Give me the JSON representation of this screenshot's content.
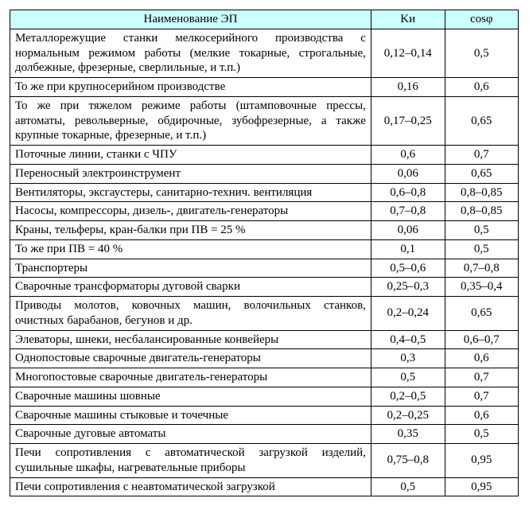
{
  "table": {
    "headers": {
      "name": "Наименование ЭП",
      "ki": "Kи",
      "cosphi": "cosφ"
    },
    "rows": [
      {
        "name": "Металлорежущие станки мелкосерийного производства с нормальным режимом работы (мелкие токарные, строгальные, долбежные, фрезерные, сверлильные, и т.п.)",
        "ki": "0,12–0,14",
        "cosphi": "0,5"
      },
      {
        "name": "То же при крупносерийном производстве",
        "ki": "0,16",
        "cosphi": "0,6"
      },
      {
        "name": "То же при тяжелом режиме работы (штамповочные прессы, автоматы, револьверные, обдирочные, зубофрезерные, а также крупные токарные, фрезерные, и т.п.)",
        "ki": "0,17–0,25",
        "cosphi": "0,65"
      },
      {
        "name": "Поточные линии, станки с ЧПУ",
        "ki": "0,6",
        "cosphi": "0,7"
      },
      {
        "name": "Переносный электроинструмент",
        "ki": "0,06",
        "cosphi": "0,65"
      },
      {
        "name": "Вентиляторы, эксгаустеры, санитарно-технич. вентиляция",
        "ki": "0,6–0,8",
        "cosphi": "0,8–0,85"
      },
      {
        "name": "Насосы, компрессоры, дизель-, двигатель-генераторы",
        "ki": "0,7–0,8",
        "cosphi": "0,8–0,85"
      },
      {
        "name": "Краны, тельферы, кран-балки при ПВ = 25 %",
        "ki": "0,06",
        "cosphi": "0,5"
      },
      {
        "name": "То же при ПВ = 40 %",
        "ki": "0,1",
        "cosphi": "0,5"
      },
      {
        "name": "Транспортеры",
        "ki": "0,5–0,6",
        "cosphi": "0,7–0,8"
      },
      {
        "name": "Сварочные трансформаторы дуговой сварки",
        "ki": "0,25–0,3",
        "cosphi": "0,35–0,4"
      },
      {
        "name": "Приводы молотов, ковочных машин, волочильных станков, очистных барабанов, бегунов и др.",
        "ki": "0,2–0,24",
        "cosphi": "0,65"
      },
      {
        "name": "Элеваторы, шнеки, несбалансированные конвейеры",
        "ki": "0,4–0,5",
        "cosphi": "0,6–0,7"
      },
      {
        "name": "Однопостовые сварочные двигатель-генераторы",
        "ki": "0,3",
        "cosphi": "0,6"
      },
      {
        "name": "Многопостовые сварочные двигатель-генераторы",
        "ki": "0,5",
        "cosphi": "0,7"
      },
      {
        "name": "Сварочные машины шовные",
        "ki": "0,2–0,5",
        "cosphi": "0,7"
      },
      {
        "name": "Сварочные машины стыковые и точечные",
        "ki": "0,2–0,25",
        "cosphi": "0,6"
      },
      {
        "name": "Сварочные дуговые автоматы",
        "ki": "0,35",
        "cosphi": "0,5"
      },
      {
        "name": "Печи сопротивления с автоматической загрузкой изделий, сушильные шкафы, нагревательные приборы",
        "ki": "0,75–0,8",
        "cosphi": "0,95"
      },
      {
        "name": "Печи сопротивления с неавтоматической загрузкой",
        "ki": "0,5",
        "cosphi": "0,95"
      }
    ]
  }
}
